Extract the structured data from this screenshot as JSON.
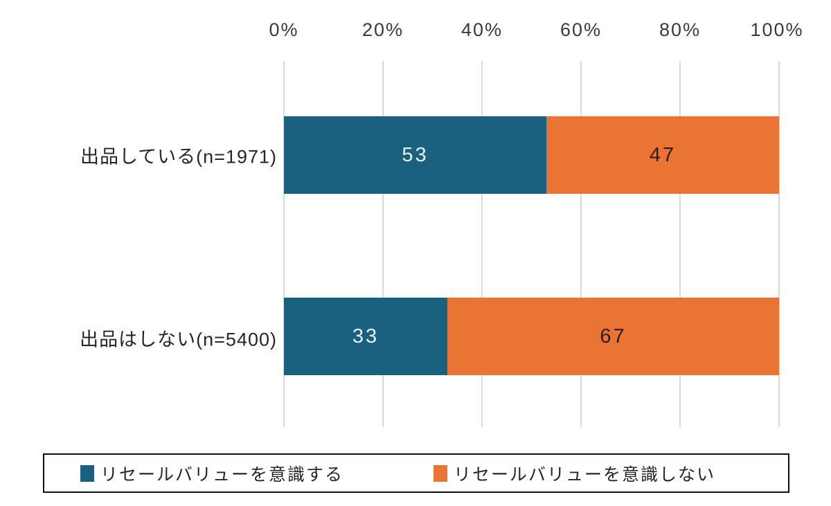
{
  "chart_data": {
    "type": "bar",
    "orientation": "horizontal",
    "stacked": true,
    "title": "",
    "categories": [
      "出品している(n=1971)",
      "出品はしない(n=5400)"
    ],
    "series": [
      {
        "name": "リセールバリューを意識する",
        "color": "#1a617f",
        "values": [
          53,
          33
        ]
      },
      {
        "name": "リセールバリューを意識しない",
        "color": "#e97433",
        "values": [
          47,
          67
        ]
      }
    ],
    "x_ticks": [
      "0%",
      "20%",
      "40%",
      "60%",
      "80%",
      "100%"
    ],
    "xlim": [
      0,
      100
    ],
    "axis_position": "top",
    "grid": true,
    "legend_position": "bottom"
  },
  "colors": {
    "series_1": "#1a617f",
    "series_2": "#e97433",
    "gridline": "#d9d9d9",
    "value_text_on_blue": "#e7f1f6",
    "value_text_on_orange": "#2e1d0d",
    "axis_text": "#3a3a3a",
    "legend_border": "#0d0d0d",
    "background": "#ffffff"
  }
}
